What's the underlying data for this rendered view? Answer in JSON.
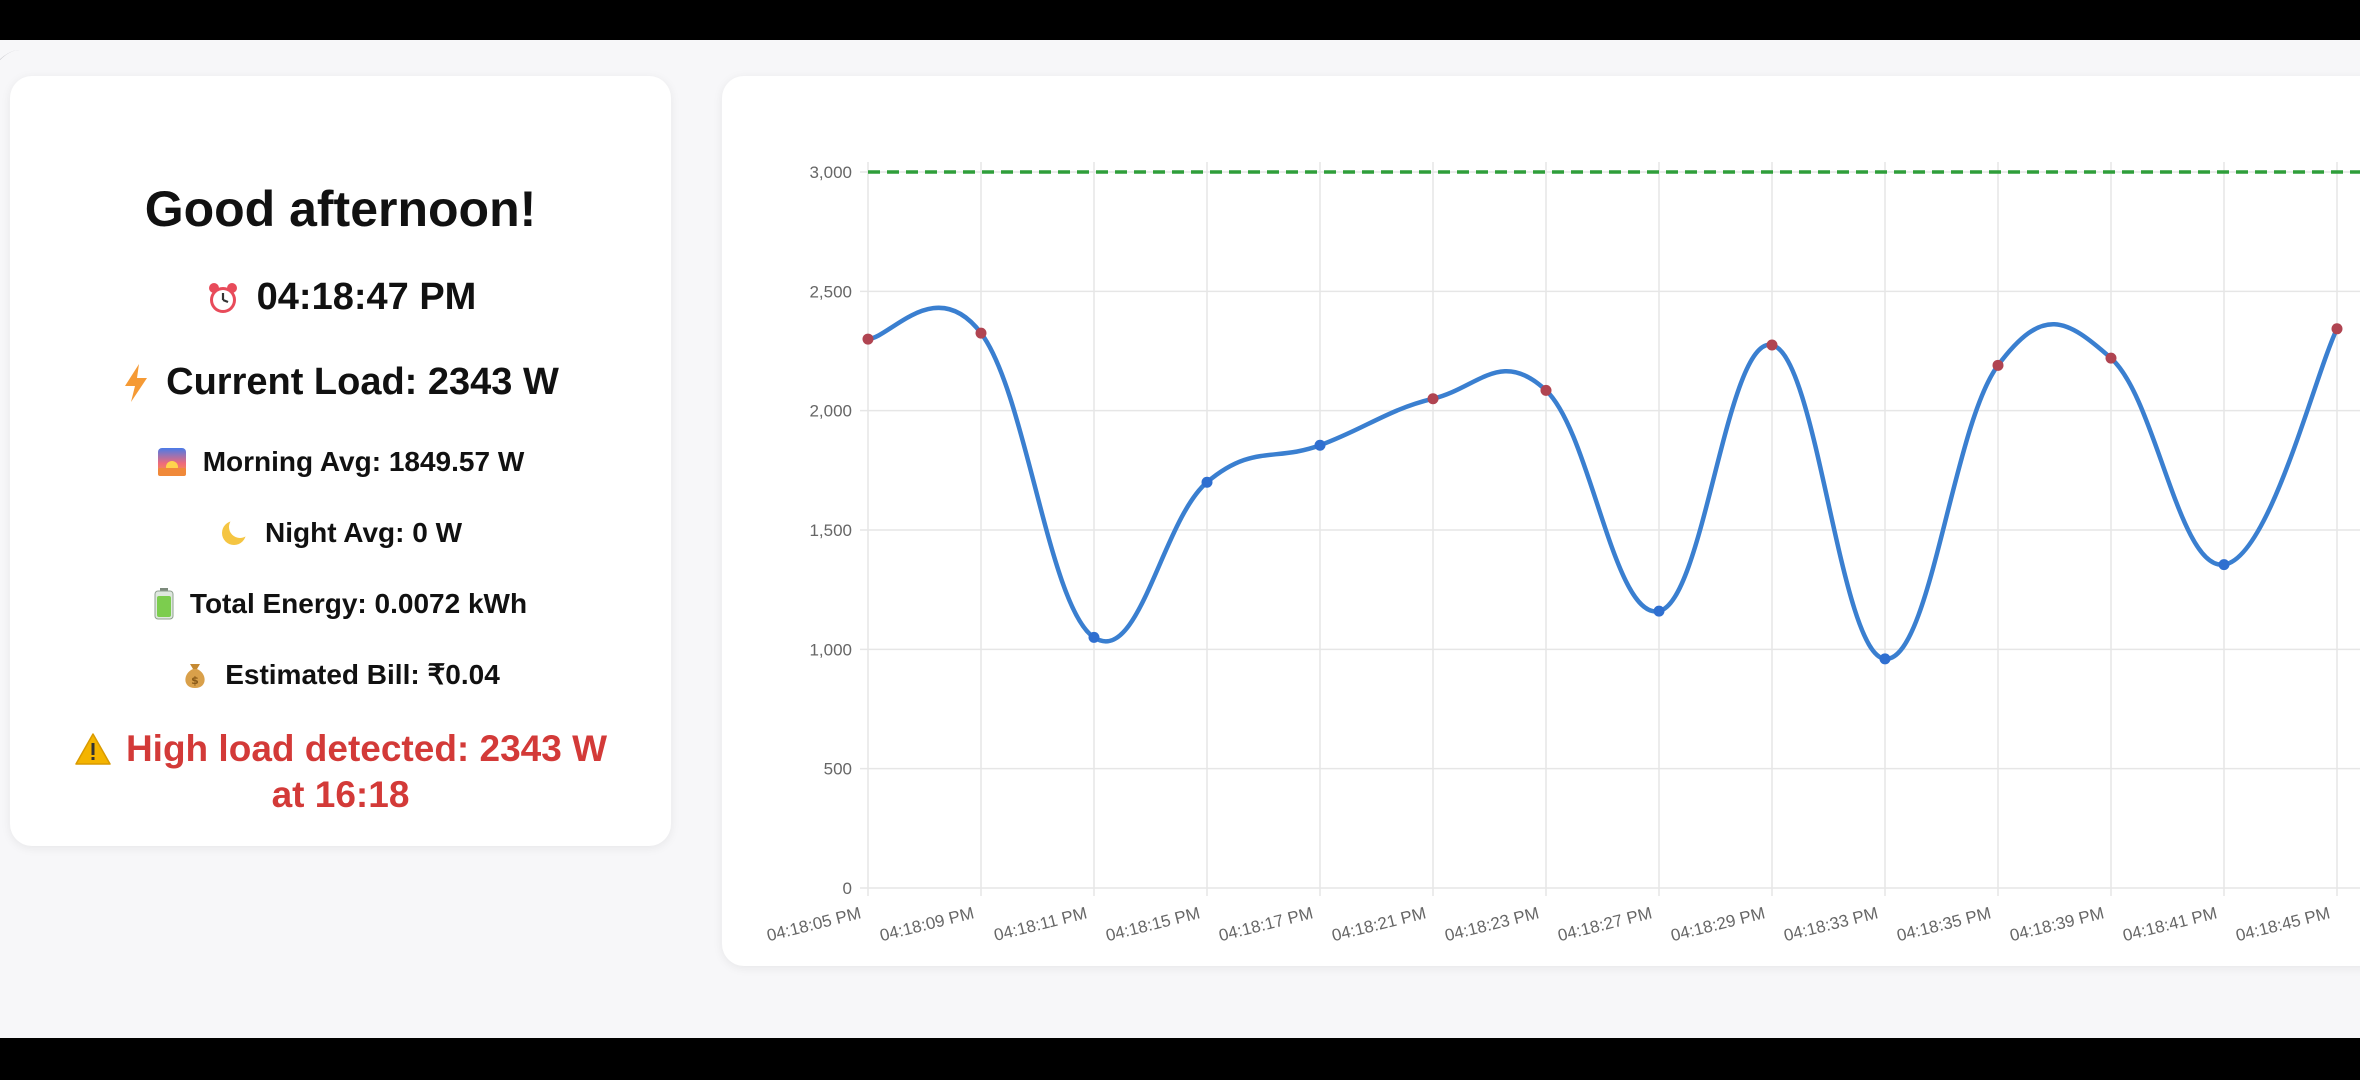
{
  "dashboard": {
    "greeting": "Good afternoon!",
    "time": "04:18:47 PM",
    "current_load": "Current Load: 2343 W",
    "morning_avg": "Morning Avg: 1849.57 W",
    "night_avg": "Night Avg: 0 W",
    "total_energy": "Total Energy: 0.0072 kWh",
    "estimated_bill": "Estimated Bill: ₹0.04",
    "alert_line1": "High load detected: 2343 W",
    "alert_line2": "at 16:18",
    "icons": {
      "time": "alarm-clock-icon",
      "load": "lightning-icon",
      "morning": "sunrise-icon",
      "night": "crescent-moon-icon",
      "energy": "battery-icon",
      "bill": "money-bag-icon",
      "alert": "warning-icon"
    }
  },
  "chart_data": {
    "type": "line",
    "categories": [
      "04:18:05 PM",
      "04:18:09 PM",
      "04:18:11 PM",
      "04:18:15 PM",
      "04:18:17 PM",
      "04:18:21 PM",
      "04:18:23 PM",
      "04:18:27 PM",
      "04:18:29 PM",
      "04:18:33 PM",
      "04:18:35 PM",
      "04:18:39 PM",
      "04:18:41 PM",
      "04:18:45 PM"
    ],
    "series": [
      {
        "values": [
          2300,
          2325,
          1050,
          1700,
          1855,
          2050,
          2085,
          1160,
          2275,
          960,
          2190,
          2220,
          1355,
          2343
        ],
        "color": "#3a7fd0",
        "point_colors": [
          "#b04451",
          "#b04451",
          "#2f6fd0",
          "#2f6fd0",
          "#2f6fd0",
          "#b04451",
          "#b04451",
          "#2f6fd0",
          "#b04451",
          "#2f6fd0",
          "#b04451",
          "#b04451",
          "#2f6fd0",
          "#b04451"
        ]
      }
    ],
    "threshold": {
      "value": 3000,
      "color": "#2f9e3a"
    },
    "ylim": [
      0,
      3000
    ],
    "yticks": [
      0,
      500,
      1000,
      1500,
      2000,
      2500,
      3000
    ],
    "ytick_labels": [
      "0",
      "500",
      "1,000",
      "1,500",
      "2,000",
      "2,500",
      "3,000"
    ],
    "grid": true,
    "title": "",
    "xlabel": "",
    "ylabel": ""
  }
}
